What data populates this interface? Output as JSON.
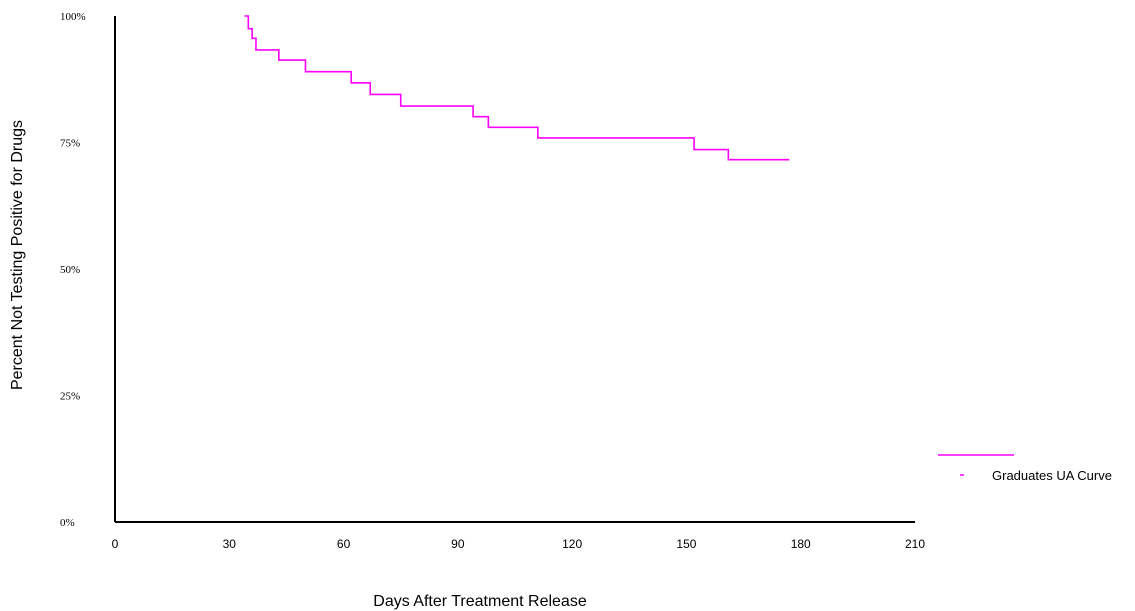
{
  "chart_data": {
    "type": "line",
    "title": "",
    "xlabel": "Days After Treatment Release",
    "ylabel": "Percent Not Testing Positive for Drugs",
    "xlim": [
      0,
      210
    ],
    "ylim": [
      0,
      100
    ],
    "x_ticks": [
      0,
      30,
      60,
      90,
      120,
      150,
      180,
      210
    ],
    "x_tick_labels": [
      "0",
      "30",
      "60",
      "90",
      "120",
      "150",
      "180",
      "210"
    ],
    "y_ticks": [
      0,
      25,
      50,
      75,
      100
    ],
    "y_tick_labels": [
      "0%",
      "25%",
      "50%",
      "75%",
      "100%"
    ],
    "grid": false,
    "legend_position": "right",
    "series": [
      {
        "name": "Graduates UA Curve",
        "color": "#ff00ff",
        "step": true,
        "points": [
          [
            34,
            100
          ],
          [
            35,
            97.5
          ],
          [
            36,
            95.6
          ],
          [
            37,
            93.3
          ],
          [
            43,
            91.3
          ],
          [
            50,
            89.0
          ],
          [
            62,
            86.8
          ],
          [
            67,
            84.5
          ],
          [
            75,
            82.2
          ],
          [
            94,
            80.1
          ],
          [
            98,
            78.0
          ],
          [
            111,
            75.9
          ],
          [
            152,
            73.6
          ],
          [
            161,
            71.6
          ],
          [
            177,
            71.6
          ]
        ]
      }
    ]
  }
}
